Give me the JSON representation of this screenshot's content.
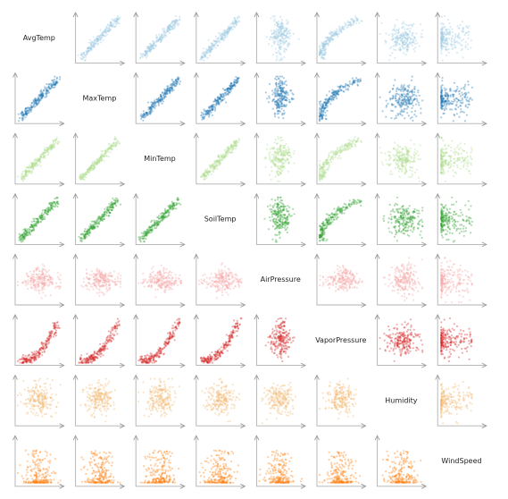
{
  "chart_data": {
    "type": "scatter",
    "title": "",
    "grid": false,
    "variables": [
      "AvgTemp",
      "MaxTemp",
      "MinTemp",
      "SoilTemp",
      "AirPressure",
      "VaporPressure",
      "Humidity",
      "WindSpeed"
    ],
    "colors": [
      "#9ecae1",
      "#1f77b4",
      "#addd8e",
      "#2ca02c",
      "#f4a6a6",
      "#d62728",
      "#f2b870",
      "#ff7f0e"
    ],
    "relations": {
      "linear": [
        [
          "AvgTemp",
          "MaxTemp"
        ],
        [
          "AvgTemp",
          "MinTemp"
        ],
        [
          "AvgTemp",
          "SoilTemp"
        ],
        [
          "MaxTemp",
          "MinTemp"
        ],
        [
          "MaxTemp",
          "SoilTemp"
        ],
        [
          "MinTemp",
          "SoilTemp"
        ]
      ],
      "exponential": [
        [
          "AvgTemp",
          "VaporPressure"
        ],
        [
          "MaxTemp",
          "VaporPressure"
        ],
        [
          "MinTemp",
          "VaporPressure"
        ],
        [
          "SoilTemp",
          "VaporPressure"
        ]
      ],
      "triangular": [
        [
          "AirPressure",
          "AvgTemp"
        ],
        [
          "AirPressure",
          "MaxTemp"
        ],
        [
          "AirPressure",
          "MinTemp"
        ],
        [
          "AirPressure",
          "SoilTemp"
        ],
        [
          "AirPressure",
          "VaporPressure"
        ]
      ],
      "diffuse": [
        [
          "Humidity",
          "AvgTemp"
        ],
        [
          "Humidity",
          "MaxTemp"
        ],
        [
          "Humidity",
          "MinTemp"
        ],
        [
          "Humidity",
          "SoilTemp"
        ],
        [
          "Humidity",
          "AirPressure"
        ],
        [
          "Humidity",
          "VaporPressure"
        ]
      ],
      "skewed": [
        [
          "WindSpeed",
          "AvgTemp"
        ],
        [
          "WindSpeed",
          "MaxTemp"
        ],
        [
          "WindSpeed",
          "MinTemp"
        ],
        [
          "WindSpeed",
          "SoilTemp"
        ],
        [
          "WindSpeed",
          "AirPressure"
        ],
        [
          "WindSpeed",
          "VaporPressure"
        ],
        [
          "WindSpeed",
          "Humidity"
        ]
      ]
    }
  }
}
